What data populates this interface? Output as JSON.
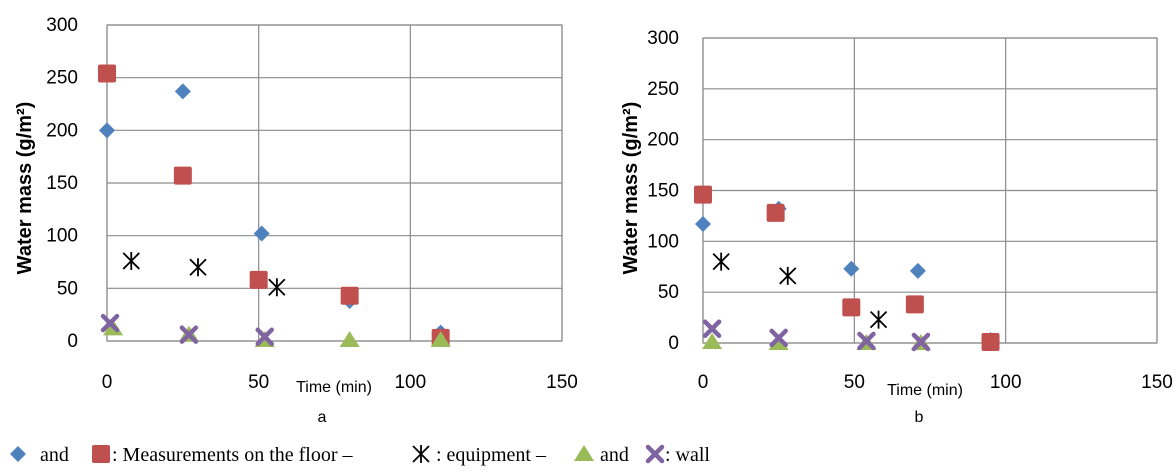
{
  "chart_data": [
    {
      "type": "scatter",
      "panel": "a",
      "xlabel": "Time (min)",
      "ylabel": "Water mass (g/m²)",
      "xlim": [
        0,
        150
      ],
      "ylim": [
        0,
        300
      ],
      "xticks": [
        0,
        50,
        100,
        150
      ],
      "yticks": [
        0,
        50,
        100,
        150,
        200,
        250,
        300
      ],
      "grid": true,
      "series": [
        {
          "marker": "diamond",
          "color": "#4f81bd",
          "x": [
            0,
            25,
            51,
            80,
            110
          ],
          "y": [
            200,
            237,
            102,
            38,
            8
          ]
        },
        {
          "marker": "square",
          "color": "#c0504d",
          "x": [
            0,
            25,
            50,
            80,
            110
          ],
          "y": [
            254,
            157,
            58,
            43,
            3
          ]
        },
        {
          "marker": "star",
          "color": "#000000",
          "x": [
            8,
            30,
            56
          ],
          "y": [
            76,
            70,
            51
          ]
        },
        {
          "marker": "triangle",
          "color": "#9bbb59",
          "x": [
            2,
            27,
            52,
            80,
            110
          ],
          "y": [
            12,
            6,
            1,
            1,
            1
          ]
        },
        {
          "marker": "x",
          "color": "#8064a2",
          "x": [
            1,
            27,
            52
          ],
          "y": [
            17,
            6,
            4
          ]
        }
      ]
    },
    {
      "type": "scatter",
      "panel": "b",
      "xlabel": "Time (min)",
      "ylabel": "Water mass (g/m²)",
      "xlim": [
        0,
        150
      ],
      "ylim": [
        0,
        300
      ],
      "xticks": [
        0,
        50,
        100,
        150
      ],
      "yticks": [
        0,
        50,
        100,
        150,
        200,
        250,
        300
      ],
      "grid": true,
      "series": [
        {
          "marker": "diamond",
          "color": "#4f81bd",
          "x": [
            0,
            25,
            49,
            71,
            95
          ],
          "y": [
            117,
            132,
            73,
            71,
            3
          ]
        },
        {
          "marker": "square",
          "color": "#c0504d",
          "x": [
            0,
            24,
            49,
            70,
            95
          ],
          "y": [
            146,
            128,
            35,
            38,
            1
          ]
        },
        {
          "marker": "star",
          "color": "#000000",
          "x": [
            6,
            28,
            58
          ],
          "y": [
            80,
            66,
            23
          ]
        },
        {
          "marker": "triangle",
          "color": "#9bbb59",
          "x": [
            3,
            25,
            54,
            72
          ],
          "y": [
            1,
            0,
            0,
            0
          ]
        },
        {
          "marker": "x",
          "color": "#8064a2",
          "x": [
            3,
            25,
            54,
            72
          ],
          "y": [
            14,
            5,
            2,
            1
          ]
        }
      ]
    }
  ],
  "legend": {
    "text_and_1": "and",
    "text_floor": ": Measurements on the floor –",
    "text_equipment": ": equipment –",
    "text_and_2": "and",
    "text_wall": ": wall"
  }
}
